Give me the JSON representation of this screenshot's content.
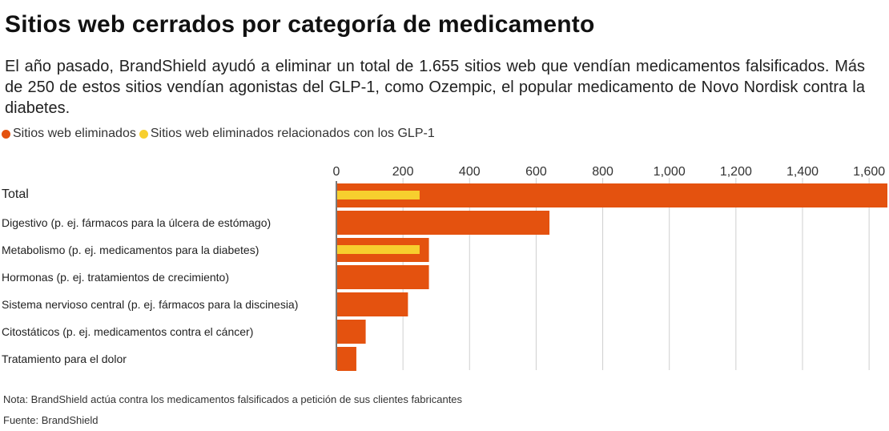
{
  "title": "Sitios web cerrados por categoría de medicamento",
  "subtitle": "El año pasado, BrandShield ayudó a eliminar un total de 1.655 sitios web que vendían medicamentos falsificados. Más de 250 de estos sitios vendían agonistas del GLP-1, como Ozempic, el popular medicamento de Novo Nordisk contra la diabetes.",
  "legend": [
    {
      "label": "Sitios web eliminados",
      "color": "#e4520f"
    },
    {
      "label": "Sitios web eliminados relacionados con los GLP-1",
      "color": "#f7cf2e"
    }
  ],
  "note": "Nota: BrandShield actúa contra los medicamentos falsificados a petición de sus clientes fabricantes",
  "source": "Fuente: BrandShield",
  "chart_data": {
    "type": "bar",
    "orientation": "horizontal",
    "categories": [
      "Total",
      "Digestivo (p. ej. fármacos para la úlcera de estómago)",
      "Metabolismo (p. ej. medicamentos para la diabetes)",
      "Hormonas (p. ej. tratamientos de crecimiento)",
      "Sistema nervioso central (p. ej. fármacos para la discinesia)",
      "Citostáticos (p. ej. medicamentos contra el cáncer)",
      "Tratamiento para el dolor"
    ],
    "series": [
      {
        "name": "Sitios web eliminados",
        "color": "#e4520f",
        "values": [
          1655,
          640,
          278,
          278,
          215,
          88,
          60
        ]
      },
      {
        "name": "Sitios web eliminados relacionados con los GLP-1",
        "color": "#f7cf2e",
        "values": [
          250,
          null,
          250,
          null,
          null,
          null,
          null
        ]
      }
    ],
    "xticks": [
      "0",
      "200",
      "400",
      "600",
      "800",
      "1,000",
      "1,200",
      "1,400",
      "1,600"
    ],
    "xtick_values": [
      0,
      200,
      400,
      600,
      800,
      1000,
      1200,
      1400,
      1600
    ],
    "xlim": [
      0,
      1655
    ],
    "grid": true,
    "legend_position": "top-left"
  }
}
